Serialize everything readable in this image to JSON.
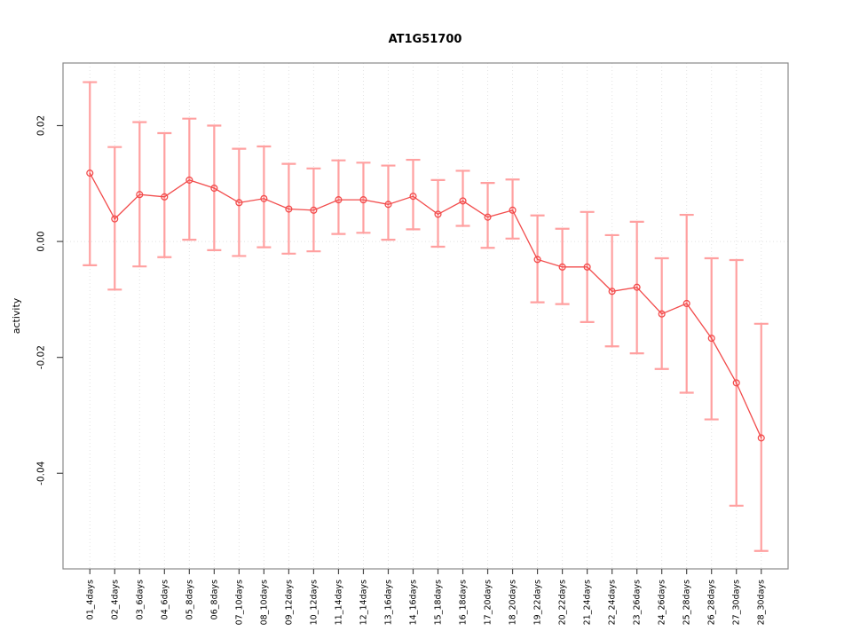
{
  "chart_data": {
    "type": "line",
    "title": "AT1G51700",
    "xlabel": "",
    "ylabel": "activity",
    "marker": "open-circle",
    "legend": "none",
    "grid": {
      "vertical": "dotted line at every category",
      "horizontal": "dotted line at y=0 only"
    },
    "categories": [
      "01_4days",
      "02_4days",
      "03_6days",
      "04_6days",
      "05_8days",
      "06_8days",
      "07_10days",
      "08_10days",
      "09_12days",
      "10_12days",
      "11_14days",
      "12_14days",
      "13_16days",
      "14_16days",
      "15_18days",
      "16_18days",
      "17_20days",
      "18_20days",
      "19_22days",
      "20_22days",
      "21_24days",
      "22_24days",
      "23_26days",
      "24_26days",
      "25_28days",
      "26_28days",
      "27_30days",
      "28_30days"
    ],
    "series": [
      {
        "name": "activity",
        "values": [
          0.0118,
          0.0039,
          0.0081,
          0.0077,
          0.0106,
          0.0092,
          0.0067,
          0.0074,
          0.0056,
          0.0054,
          0.0072,
          0.0072,
          0.0064,
          0.0078,
          0.0047,
          0.007,
          0.0042,
          0.0054,
          -0.0031,
          -0.0044,
          -0.0044,
          -0.0086,
          -0.0079,
          -0.0125,
          -0.0107,
          -0.0167,
          -0.0244,
          -0.0339
        ],
        "error_lower": [
          -0.0041,
          -0.0083,
          -0.0043,
          -0.0027,
          0.0003,
          -0.0015,
          -0.0025,
          -0.001,
          -0.0021,
          -0.0017,
          0.0013,
          0.0015,
          0.0003,
          0.0021,
          -0.0009,
          0.0027,
          -0.0011,
          0.0005,
          -0.0105,
          -0.0108,
          -0.0139,
          -0.0181,
          -0.0193,
          -0.022,
          -0.0261,
          -0.0307,
          -0.0456,
          -0.0534
        ],
        "error_upper": [
          0.0275,
          0.0163,
          0.0206,
          0.0187,
          0.0212,
          0.02,
          0.016,
          0.0164,
          0.0134,
          0.0126,
          0.014,
          0.0136,
          0.0131,
          0.0141,
          0.0106,
          0.0122,
          0.0101,
          0.0107,
          0.0045,
          0.0022,
          0.0051,
          0.0011,
          0.0034,
          -0.0029,
          0.0046,
          -0.0029,
          -0.0032,
          -0.0142
        ]
      }
    ],
    "yticks": [
      0.02,
      0.0,
      -0.02,
      -0.04
    ],
    "ytick_labels": [
      "0.02",
      "0.00",
      "-0.02",
      "-0.04"
    ],
    "ylim": [
      -0.0565,
      0.0308
    ],
    "xlim": [
      -0.08,
      29.08
    ],
    "colors": {
      "point_line": "#f24c4c",
      "error_bar": "#ffa0a0",
      "grid": "#e2e2e2",
      "frame": "#8a8a8a",
      "tick": "#4a4a4a",
      "text": "#000000",
      "background": "#ffffff"
    }
  }
}
